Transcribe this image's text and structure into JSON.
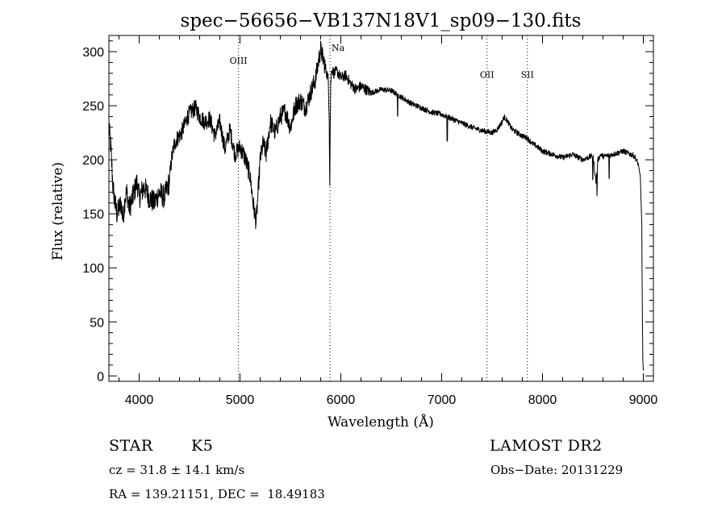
{
  "chart_data": {
    "type": "line",
    "title": "spec−56656−VB137N18V1_sp09−130.fits",
    "xlabel": "Wavelength (Å)",
    "ylabel": "Flux (relative)",
    "xlim": [
      3700,
      9100
    ],
    "ylim": [
      -5,
      315
    ],
    "x_ticks": [
      {
        "value": 4000,
        "label": "4000"
      },
      {
        "value": 5000,
        "label": "5000"
      },
      {
        "value": 6000,
        "label": "6000"
      },
      {
        "value": 7000,
        "label": "7000"
      },
      {
        "value": 8000,
        "label": "8000"
      },
      {
        "value": 9000,
        "label": "9000"
      }
    ],
    "y_ticks": [
      {
        "value": 0,
        "label": "0"
      },
      {
        "value": 50,
        "label": "50"
      },
      {
        "value": 100,
        "label": "100"
      },
      {
        "value": 150,
        "label": "150"
      },
      {
        "value": 200,
        "label": "200"
      },
      {
        "value": 250,
        "label": "250"
      },
      {
        "value": 300,
        "label": "300"
      }
    ],
    "lines": [
      {
        "label": "OIII",
        "x": 4985,
        "label_y": 289
      },
      {
        "label": "Na",
        "x": 5893,
        "label_y": 301
      },
      {
        "label": "OII",
        "x": 7450,
        "label_y": 276
      },
      {
        "label": "SII",
        "x": 7850,
        "label_y": 276
      }
    ],
    "series": [
      {
        "x": [
          3700,
          3720,
          3740,
          3760,
          3780,
          3800,
          3820,
          3840,
          3860,
          3880,
          3900,
          3920,
          3950,
          3980,
          4000,
          4050,
          4100,
          4150,
          4200,
          4250,
          4300,
          4320,
          4350,
          4380,
          4420,
          4450,
          4480,
          4520,
          4560,
          4600,
          4650,
          4700,
          4750,
          4800,
          4850,
          4900,
          4950,
          5000,
          5050,
          5100,
          5130,
          5160,
          5180,
          5200,
          5230,
          5260,
          5300,
          5350,
          5400,
          5450,
          5500,
          5550,
          5600,
          5650,
          5700,
          5750,
          5780,
          5800,
          5820,
          5840,
          5860,
          5875,
          5885,
          5890,
          5895,
          5900,
          5910,
          5930,
          5960,
          6000,
          6050,
          6100,
          6150,
          6200,
          6300,
          6400,
          6500,
          6600,
          6700,
          6800,
          6900,
          7000,
          7100,
          7200,
          7300,
          7400,
          7450,
          7500,
          7550,
          7600,
          7620,
          7650,
          7700,
          7750,
          7800,
          7850,
          7900,
          7950,
          8000,
          8100,
          8200,
          8300,
          8400,
          8500,
          8530,
          8550,
          8580,
          8600,
          8700,
          8800,
          8900,
          8920,
          8950,
          8970,
          8985,
          8990,
          8995,
          9000
        ],
        "y": [
          230,
          210,
          175,
          160,
          150,
          155,
          160,
          145,
          165,
          170,
          155,
          160,
          170,
          180,
          165,
          175,
          165,
          160,
          170,
          165,
          180,
          200,
          215,
          220,
          225,
          232,
          240,
          245,
          248,
          240,
          235,
          238,
          222,
          235,
          210,
          228,
          205,
          212,
          202,
          185,
          160,
          142,
          170,
          200,
          215,
          205,
          235,
          225,
          240,
          245,
          230,
          250,
          255,
          248,
          262,
          275,
          292,
          302,
          295,
          288,
          280,
          275,
          240,
          180,
          232,
          270,
          285,
          280,
          282,
          276,
          278,
          270,
          265,
          268,
          262,
          265,
          264,
          258,
          252,
          248,
          244,
          242,
          238,
          234,
          230,
          227,
          226,
          225,
          228,
          235,
          240,
          236,
          228,
          225,
          222,
          220,
          215,
          212,
          208,
          205,
          202,
          205,
          200,
          204,
          180,
          200,
          205,
          203,
          205,
          208,
          204,
          202,
          196,
          185,
          140,
          60,
          15,
          5
        ]
      }
    ]
  },
  "footer": {
    "object_type": "STAR",
    "subclass": "K5",
    "cz": "cz = 31.8 ± 14.1 km/s",
    "radec": "RA = 139.21151, DEC =  18.49183",
    "survey": "LAMOST DR2",
    "obs_date": "Obs−Date: 20131229"
  }
}
